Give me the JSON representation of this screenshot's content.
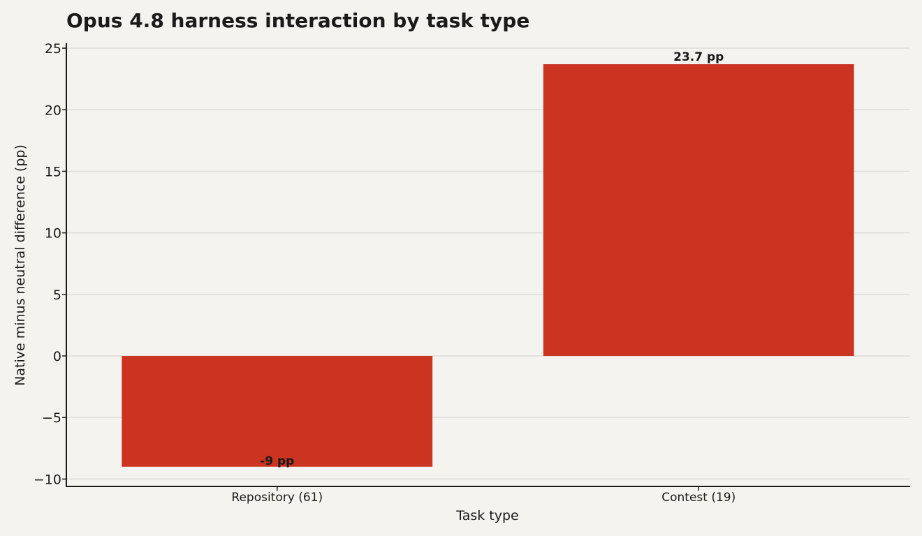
{
  "chart_data": {
    "type": "bar",
    "title": "Opus 4.8 harness interaction by task type",
    "xlabel": "Task type",
    "ylabel": "Native minus neutral difference (pp)",
    "categories": [
      "Repository (61)",
      "Contest (19)"
    ],
    "values": [
      -9,
      23.7
    ],
    "data_labels": [
      "-9 pp",
      "23.7 pp"
    ],
    "ylim": [
      -10.6,
      25.4
    ],
    "yticks": [
      25,
      20,
      15,
      10,
      5,
      0,
      -5,
      -10
    ],
    "ytick_labels": [
      "25",
      "20",
      "15",
      "10",
      "5",
      "0",
      "−5",
      "−10"
    ],
    "grid": true,
    "bar_color": "#cb3420",
    "background_color": "#f4f3ef",
    "grid_color": "#dedcd7"
  }
}
